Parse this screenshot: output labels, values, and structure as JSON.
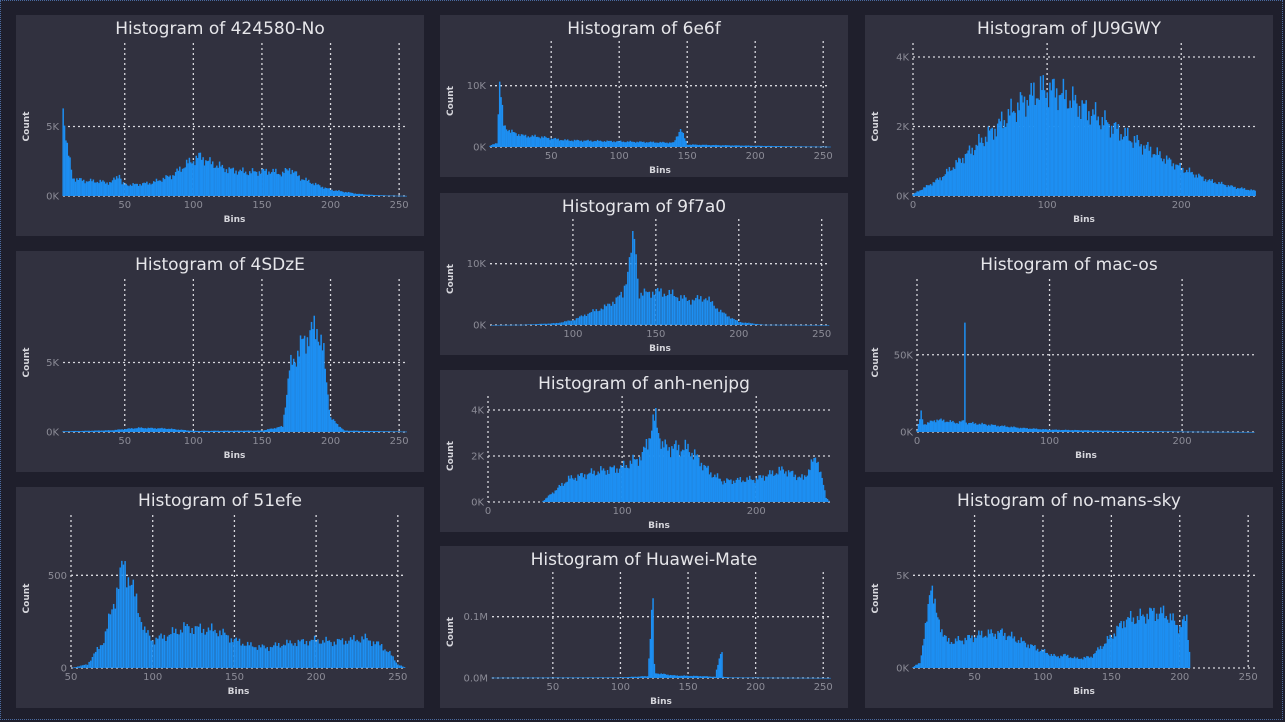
{
  "chart_data": [
    {
      "type": "bar",
      "title": "Histogram of 424580-No",
      "xlabel": "Bins",
      "ylabel": "Count",
      "xlim": [
        5,
        255
      ],
      "ylim": [
        0,
        10000
      ],
      "xticks": [
        50,
        100,
        150,
        200,
        250
      ],
      "xtick_labels": [
        "50",
        "100",
        "150",
        "200",
        "250"
      ],
      "yticks": [
        0,
        5000
      ],
      "ytick_labels": [
        "0K",
        "5K"
      ],
      "x": [
        5,
        8,
        12,
        20,
        30,
        40,
        46,
        48,
        55,
        70,
        85,
        95,
        105,
        112,
        125,
        140,
        155,
        165,
        170,
        178,
        190,
        200,
        210,
        220,
        230,
        240,
        250,
        255
      ],
      "y": [
        6500,
        3500,
        1300,
        1100,
        1050,
        950,
        1600,
        850,
        800,
        950,
        1500,
        2300,
        2850,
        2400,
        1900,
        1700,
        1800,
        1600,
        2000,
        1300,
        800,
        450,
        300,
        150,
        80,
        40,
        20,
        10
      ]
    },
    {
      "type": "bar",
      "title": "Histogram of 6e6f",
      "xlabel": "Bins",
      "ylabel": "Count",
      "xlim": [
        5,
        255
      ],
      "ylim": [
        0,
        15000
      ],
      "xticks": [
        50,
        100,
        150,
        200,
        250
      ],
      "xtick_labels": [
        "50",
        "100",
        "150",
        "200",
        "250"
      ],
      "yticks": [
        0,
        10000
      ],
      "ytick_labels": [
        "0K",
        "10K"
      ],
      "x": [
        5,
        10,
        12,
        15,
        20,
        30,
        40,
        50,
        60,
        80,
        100,
        120,
        140,
        145,
        150,
        170,
        200,
        230,
        255
      ],
      "y": [
        200,
        700,
        10300,
        3600,
        2500,
        1800,
        1700,
        1400,
        1100,
        1000,
        900,
        800,
        700,
        3000,
        400,
        300,
        200,
        100,
        50
      ]
    },
    {
      "type": "bar",
      "title": "Histogram of JU9GWY",
      "xlabel": "Bins",
      "ylabel": "Count",
      "xlim": [
        0,
        255
      ],
      "ylim": [
        0,
        4000
      ],
      "xticks": [
        0,
        100,
        200
      ],
      "xtick_labels": [
        "0",
        "100",
        "200"
      ],
      "yticks": [
        0,
        2000,
        4000
      ],
      "ytick_labels": [
        "0K",
        "2K",
        "4K"
      ],
      "x": [
        0,
        20,
        40,
        60,
        80,
        95,
        105,
        120,
        140,
        160,
        180,
        200,
        220,
        240,
        255
      ],
      "y": [
        50,
        500,
        1200,
        1900,
        2650,
        3050,
        3050,
        2700,
        2200,
        1700,
        1250,
        800,
        450,
        250,
        150
      ]
    },
    {
      "type": "bar",
      "title": "Histogram of 4SDzE",
      "xlabel": "Bins",
      "ylabel": "Count",
      "xlim": [
        5,
        255
      ],
      "ylim": [
        0,
        10000
      ],
      "xticks": [
        50,
        100,
        150,
        200,
        250
      ],
      "xtick_labels": [
        "50",
        "100",
        "150",
        "200",
        "250"
      ],
      "yticks": [
        0,
        5000
      ],
      "ytick_labels": [
        "0K",
        "5K"
      ],
      "x": [
        5,
        40,
        60,
        80,
        100,
        150,
        165,
        170,
        180,
        190,
        195,
        200,
        210,
        255
      ],
      "y": [
        50,
        120,
        300,
        250,
        80,
        100,
        400,
        4500,
        6500,
        7600,
        5500,
        1000,
        100,
        30
      ]
    },
    {
      "type": "bar",
      "title": "Histogram of 9f7a0",
      "xlabel": "Bins",
      "ylabel": "Count",
      "xlim": [
        50,
        255
      ],
      "ylim": [
        0,
        15000
      ],
      "xticks": [
        100,
        150,
        200,
        250
      ],
      "xtick_labels": [
        "100",
        "150",
        "200",
        "250"
      ],
      "yticks": [
        0,
        10000
      ],
      "ytick_labels": [
        "0K",
        "10K"
      ],
      "x": [
        50,
        70,
        90,
        100,
        110,
        120,
        130,
        137,
        140,
        150,
        160,
        170,
        180,
        190,
        200,
        215,
        255
      ],
      "y": [
        0,
        50,
        300,
        800,
        2000,
        3000,
        5000,
        14500,
        5000,
        5500,
        5000,
        4000,
        4500,
        2000,
        500,
        50,
        0
      ]
    },
    {
      "type": "bar",
      "title": "Histogram of anh-nenjpg",
      "xlabel": "Bins",
      "ylabel": "Count",
      "xlim": [
        0,
        255
      ],
      "ylim": [
        0,
        4000
      ],
      "xticks": [
        0,
        100,
        200
      ],
      "xtick_labels": [
        "0",
        "100",
        "200"
      ],
      "yticks": [
        0,
        2000,
        4000
      ],
      "ytick_labels": [
        "0K",
        "2K",
        "4K"
      ],
      "x": [
        0,
        40,
        50,
        60,
        80,
        100,
        115,
        125,
        130,
        150,
        165,
        175,
        200,
        220,
        235,
        245,
        252,
        255
      ],
      "y": [
        0,
        0,
        500,
        1000,
        1300,
        1500,
        2000,
        3700,
        2400,
        2300,
        1300,
        900,
        1000,
        1400,
        1000,
        2000,
        200,
        0
      ]
    },
    {
      "type": "bar",
      "title": "Histogram of 51efe",
      "xlabel": "Bins",
      "ylabel": "Count",
      "xlim": [
        50,
        255
      ],
      "ylim": [
        0,
        750
      ],
      "xticks": [
        50,
        100,
        150,
        200,
        250
      ],
      "xtick_labels": [
        "50",
        "100",
        "150",
        "200",
        "250"
      ],
      "yticks": [
        0,
        500
      ],
      "ytick_labels": [
        "0",
        "500"
      ],
      "x": [
        50,
        60,
        70,
        78,
        82,
        86,
        95,
        100,
        110,
        120,
        130,
        140,
        150,
        160,
        170,
        180,
        190,
        200,
        210,
        220,
        230,
        240,
        245,
        250,
        255
      ],
      "y": [
        0,
        20,
        150,
        420,
        560,
        480,
        200,
        150,
        180,
        220,
        210,
        200,
        150,
        120,
        110,
        130,
        140,
        150,
        140,
        150,
        160,
        120,
        80,
        20,
        0
      ]
    },
    {
      "type": "bar",
      "title": "Histogram of Huawei-Mate",
      "xlabel": "Bins",
      "ylabel": "Count",
      "xlim": [
        5,
        255
      ],
      "ylim": [
        0,
        0.15
      ],
      "xticks": [
        50,
        100,
        150,
        200,
        250
      ],
      "xtick_labels": [
        "50",
        "100",
        "150",
        "200",
        "250"
      ],
      "yticks": [
        0,
        0.1
      ],
      "ytick_labels": [
        "0.0M",
        "0.1M"
      ],
      "x": [
        5,
        60,
        100,
        120,
        124,
        125,
        126,
        140,
        160,
        170,
        175,
        176,
        180,
        220,
        255
      ],
      "y": [
        0.0005,
        0.0008,
        0.001,
        0.003,
        0.13,
        0.02,
        0.008,
        0.004,
        0.003,
        0.002,
        0.05,
        0.002,
        0.001,
        0.0005,
        0.0002
      ]
    },
    {
      "type": "bar",
      "title": "Histogram of mac-os",
      "xlabel": "Bins",
      "ylabel": "Count",
      "xlim": [
        0,
        255
      ],
      "ylim": [
        0,
        90000
      ],
      "xticks": [
        0,
        100,
        200
      ],
      "xtick_labels": [
        "0",
        "100",
        "200"
      ],
      "yticks": [
        0,
        50000
      ],
      "ytick_labels": [
        "0K",
        "50K"
      ],
      "x": [
        0,
        3,
        5,
        15,
        30,
        35,
        36,
        37,
        50,
        80,
        100,
        150,
        200,
        230,
        255
      ],
      "y": [
        1000,
        12000,
        5000,
        8000,
        6000,
        7000,
        78000,
        6000,
        5000,
        2500,
        1500,
        700,
        300,
        100,
        0
      ]
    },
    {
      "type": "bar",
      "title": "Histogram of no-mans-sky",
      "xlabel": "Bins",
      "ylabel": "Count",
      "xlim": [
        5,
        255
      ],
      "ylim": [
        0,
        7500
      ],
      "xticks": [
        50,
        100,
        150,
        200,
        250
      ],
      "xtick_labels": [
        "50",
        "100",
        "150",
        "200",
        "250"
      ],
      "yticks": [
        0,
        5000
      ],
      "ytick_labels": [
        "0K",
        "5K"
      ],
      "x": [
        5,
        10,
        15,
        18,
        22,
        30,
        40,
        55,
        70,
        85,
        100,
        110,
        115,
        125,
        135,
        150,
        160,
        170,
        180,
        190,
        200,
        205,
        208,
        230,
        255
      ],
      "y": [
        50,
        300,
        2500,
        4900,
        2800,
        1400,
        1500,
        1800,
        1900,
        1400,
        900,
        600,
        700,
        500,
        600,
        1700,
        2600,
        2700,
        3000,
        2900,
        2200,
        2700,
        0,
        0,
        0
      ]
    }
  ]
}
